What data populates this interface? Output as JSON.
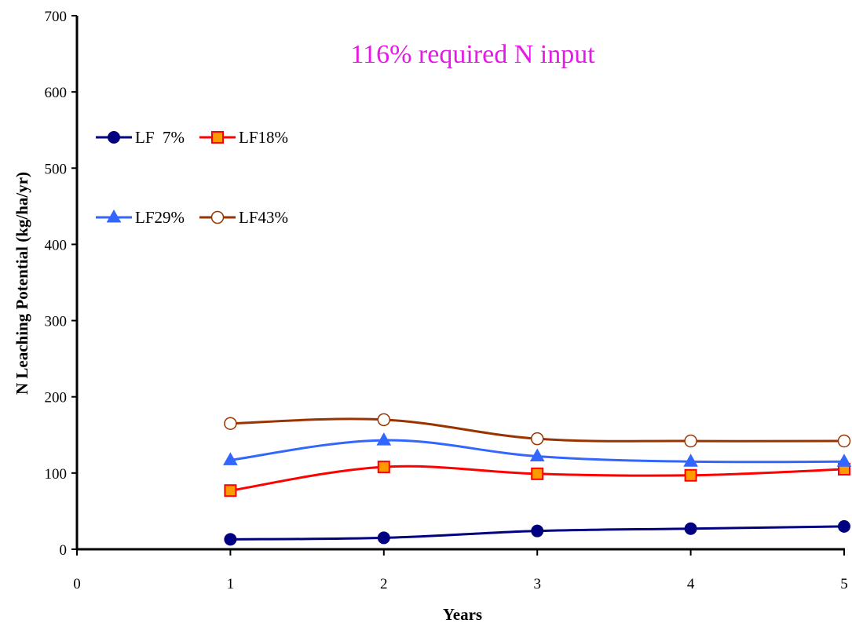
{
  "chart_data": {
    "type": "line",
    "title": "116% required N input",
    "xlabel": "Years",
    "ylabel": "N Leaching Potential (kg/ha/yr)",
    "xlim": [
      0,
      5
    ],
    "ylim": [
      0,
      700
    ],
    "x_ticks": [
      "0",
      "1",
      "2",
      "3",
      "4",
      "5"
    ],
    "y_ticks": [
      "0",
      "100",
      "200",
      "300",
      "400",
      "500",
      "600",
      "700"
    ],
    "grid": false,
    "legend": "left, inside plot, two rows",
    "x": [
      1,
      2,
      3,
      4,
      5
    ],
    "series": [
      {
        "name": "LF  7%",
        "values": [
          13,
          15,
          24,
          27,
          30
        ],
        "color": "#000080",
        "marker": "filled-circle"
      },
      {
        "name": "LF18%",
        "values": [
          77,
          108,
          99,
          97,
          105
        ],
        "color": "#ff0000",
        "marker": "orange-square"
      },
      {
        "name": "LF29%",
        "values": [
          117,
          143,
          122,
          115,
          115
        ],
        "color": "#3366ff",
        "marker": "filled-triangle"
      },
      {
        "name": "LF43%",
        "values": [
          165,
          170,
          145,
          142,
          142
        ],
        "color": "#993300",
        "marker": "open-circle"
      }
    ]
  }
}
